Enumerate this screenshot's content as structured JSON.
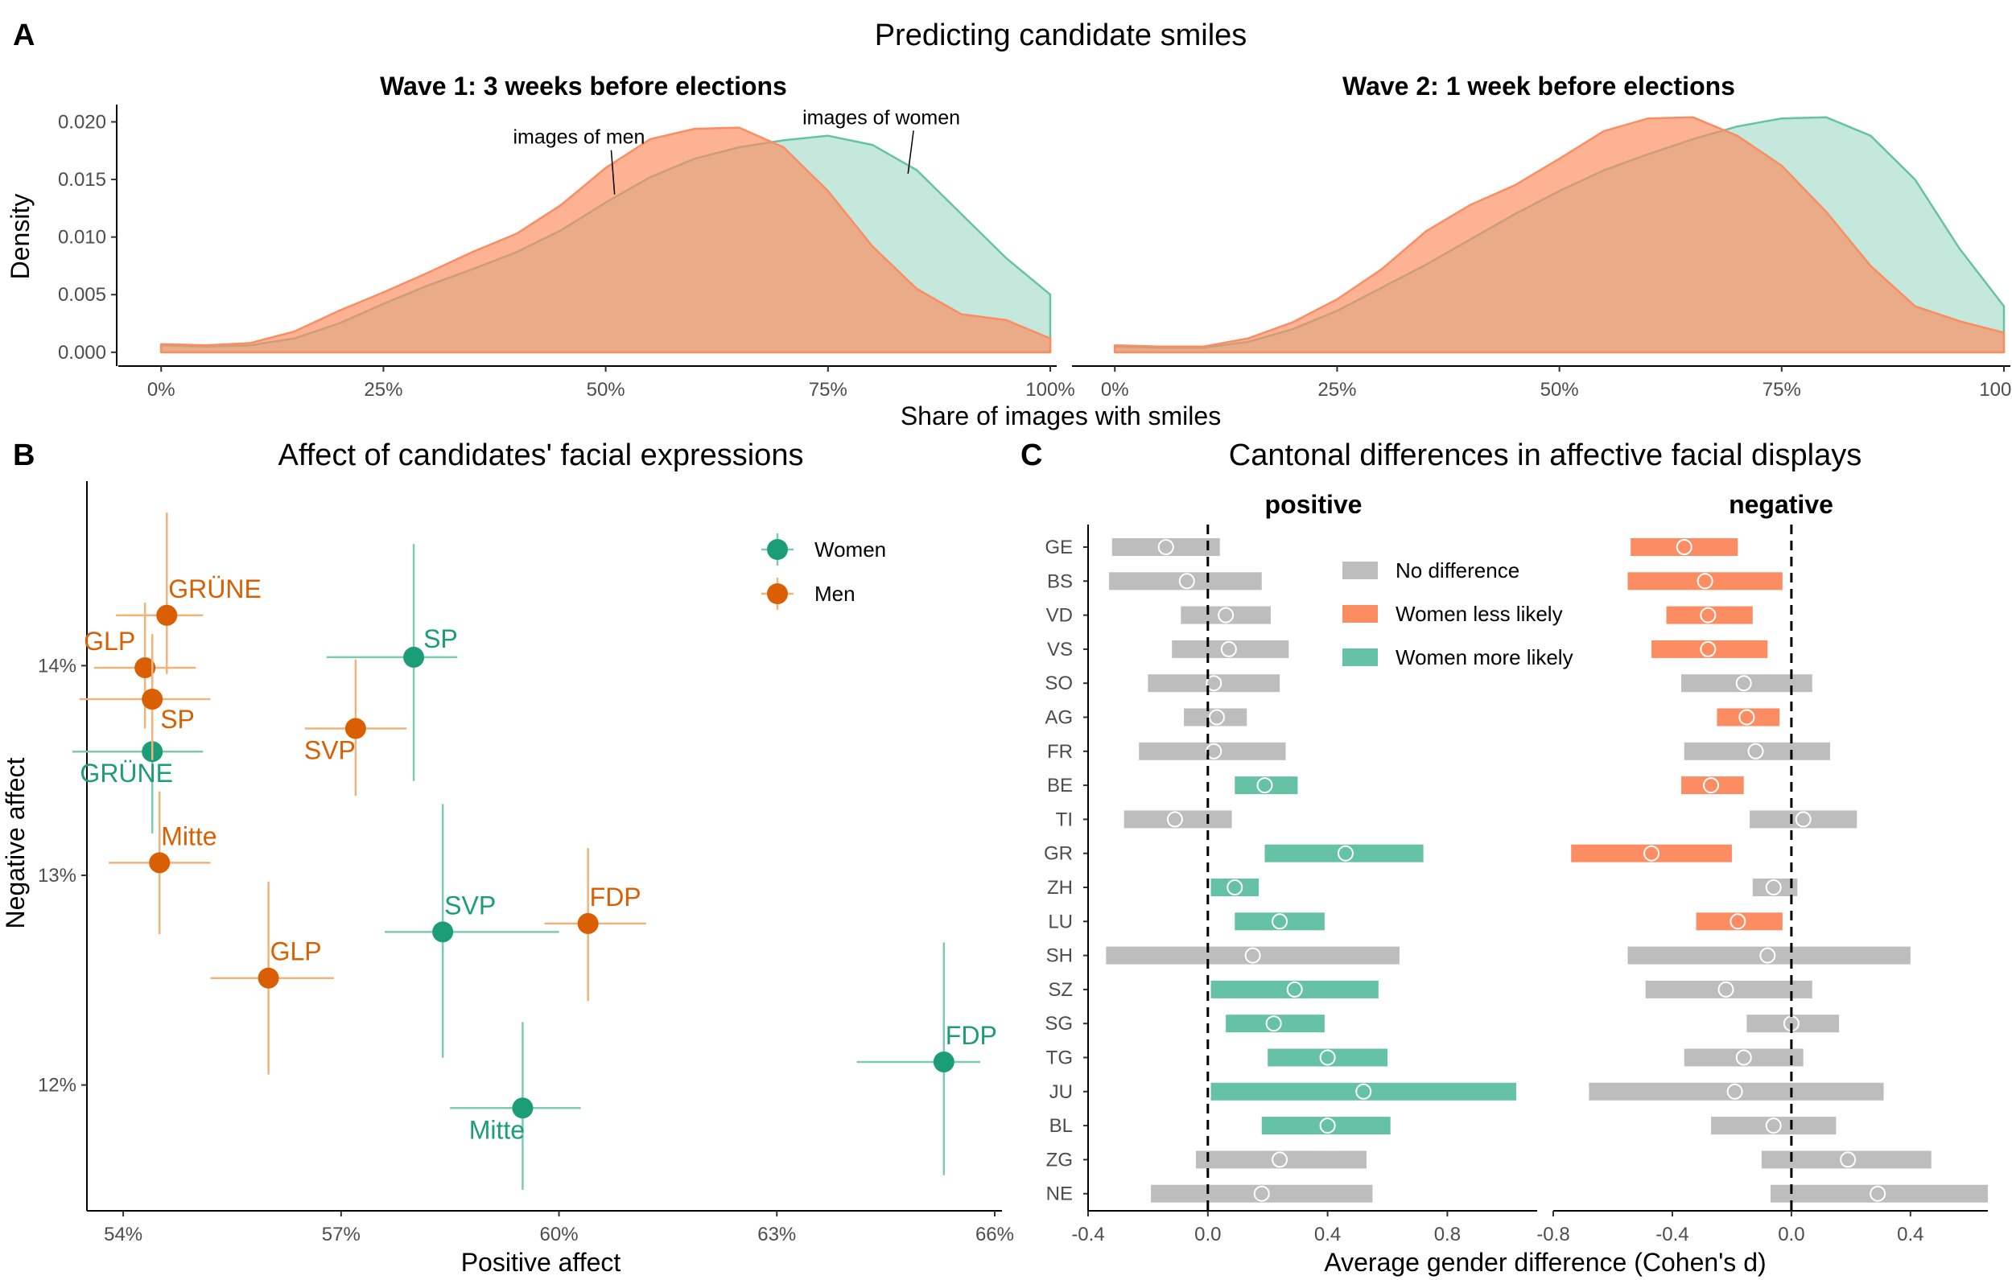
{
  "figure": {
    "panel_a": {
      "letter": "A",
      "title": "Predicting candidate smiles",
      "xlabel": "Share of images with smiles",
      "ylabel": "Density"
    },
    "panel_b": {
      "letter": "B",
      "title": "Affect of candidates' facial expressions",
      "xlabel": "Positive affect",
      "ylabel": "Negative affect"
    },
    "panel_c": {
      "letter": "C",
      "title": "Cantonal differences in affective facial displays",
      "xlabel": "Average gender difference (Cohen's d)"
    }
  },
  "colors": {
    "women": "#1b9e77",
    "men": "#d95f02",
    "women_density": "#66c2a5",
    "men_density": "#fc8d62",
    "no_difference": "#bdbdbd",
    "women_less": "#fc8d62",
    "women_more": "#66c2a5"
  },
  "chart_data": [
    {
      "id": "density",
      "type": "area",
      "x_ticks": [
        0,
        25,
        50,
        75,
        100
      ],
      "x_tick_labels": [
        "0%",
        "25%",
        "50%",
        "75%",
        "100%"
      ],
      "y_ticks": [
        0,
        0.005,
        0.01,
        0.015,
        0.02
      ],
      "y_tick_labels": [
        "0.000",
        "0.005",
        "0.010",
        "0.015",
        "0.020"
      ],
      "xlim": [
        -5,
        100
      ],
      "ylim": [
        -0.0012,
        0.0215
      ],
      "x": [
        0,
        5,
        10,
        15,
        20,
        25,
        30,
        35,
        40,
        45,
        50,
        55,
        60,
        65,
        70,
        75,
        80,
        85,
        90,
        95,
        100
      ],
      "facets": [
        {
          "title": "Wave 1: 3 weeks before elections",
          "annotations": [
            {
              "text": "images of men",
              "x": 47,
              "y": 0.0181,
              "to_x": 51,
              "to_y": 0.0137
            },
            {
              "text": "images of women",
              "x": 81,
              "y": 0.0198,
              "to_x": 84,
              "to_y": 0.0155
            }
          ],
          "series": [
            {
              "name": "images of women",
              "values": [
                0.0006,
                0.0005,
                0.0006,
                0.0012,
                0.0025,
                0.0042,
                0.0058,
                0.0072,
                0.0087,
                0.0106,
                0.013,
                0.0152,
                0.0168,
                0.0178,
                0.0184,
                0.0188,
                0.018,
                0.0158,
                0.012,
                0.0082,
                0.005
              ]
            },
            {
              "name": "images of men",
              "values": [
                0.0007,
                0.0006,
                0.0008,
                0.0018,
                0.0036,
                0.0052,
                0.0069,
                0.0087,
                0.0103,
                0.0128,
                0.016,
                0.0185,
                0.0194,
                0.0195,
                0.0178,
                0.014,
                0.0092,
                0.0055,
                0.0033,
                0.0028,
                0.0012
              ]
            }
          ]
        },
        {
          "title": "Wave 2: 1 week before elections",
          "annotations": [],
          "series": [
            {
              "name": "images of women",
              "values": [
                0.0005,
                0.0004,
                0.0004,
                0.0009,
                0.002,
                0.0036,
                0.0056,
                0.0076,
                0.0098,
                0.012,
                0.014,
                0.0158,
                0.0172,
                0.0185,
                0.0196,
                0.0203,
                0.0204,
                0.0188,
                0.015,
                0.009,
                0.004
              ]
            },
            {
              "name": "images of men",
              "values": [
                0.0006,
                0.0005,
                0.0005,
                0.0012,
                0.0026,
                0.0046,
                0.0072,
                0.0105,
                0.0128,
                0.0145,
                0.0168,
                0.0192,
                0.0203,
                0.0204,
                0.0188,
                0.0162,
                0.0122,
                0.0075,
                0.004,
                0.0027,
                0.0017
              ]
            }
          ]
        }
      ]
    },
    {
      "id": "affect",
      "type": "scatter",
      "x_ticks": [
        54,
        57,
        60,
        63,
        66
      ],
      "x_tick_labels": [
        "54%",
        "57%",
        "60%",
        "63%",
        "66%"
      ],
      "y_ticks": [
        12,
        13,
        14
      ],
      "y_tick_labels": [
        "12%",
        "13%",
        "14%"
      ],
      "xlim": [
        53.5,
        66.1
      ],
      "ylim": [
        11.4,
        14.88
      ],
      "legend": [
        {
          "name": "Women",
          "color": "#1b9e77"
        },
        {
          "name": "Men",
          "color": "#d95f02"
        }
      ],
      "series": [
        {
          "name": "Women",
          "points": [
            {
              "label": "SP",
              "x": 58.0,
              "y": 14.04,
              "x_lo": 56.8,
              "x_hi": 58.6,
              "y_lo": 13.45,
              "y_hi": 14.58,
              "label_pos": "right"
            },
            {
              "label": "GRÜNE",
              "x": 54.4,
              "y": 13.59,
              "x_lo": 53.3,
              "x_hi": 55.1,
              "y_lo": 13.2,
              "y_hi": 14.0,
              "label_pos": "below"
            },
            {
              "label": "SVP",
              "x": 58.4,
              "y": 12.73,
              "x_lo": 57.6,
              "x_hi": 60.0,
              "y_lo": 12.13,
              "y_hi": 13.34,
              "label_pos": "upright"
            },
            {
              "label": "FDP",
              "x": 65.3,
              "y": 12.11,
              "x_lo": 64.1,
              "x_hi": 65.8,
              "y_lo": 11.57,
              "y_hi": 12.68,
              "label_pos": "upright"
            },
            {
              "label": "Mitte",
              "x": 59.5,
              "y": 11.89,
              "x_lo": 58.5,
              "x_hi": 60.3,
              "y_lo": 11.5,
              "y_hi": 12.3,
              "label_pos": "belowleft"
            }
          ]
        },
        {
          "name": "Men",
          "points": [
            {
              "label": "GRÜNE",
              "x": 54.6,
              "y": 14.24,
              "x_lo": 53.9,
              "x_hi": 55.1,
              "y_lo": 13.96,
              "y_hi": 14.73,
              "label_pos": "upright"
            },
            {
              "label": "GLP",
              "x": 54.3,
              "y": 13.99,
              "x_lo": 53.6,
              "x_hi": 55.0,
              "y_lo": 13.7,
              "y_hi": 14.3,
              "label_pos": "upleft"
            },
            {
              "label": "SP",
              "x": 54.4,
              "y": 13.84,
              "x_lo": 53.4,
              "x_hi": 55.2,
              "y_lo": 13.55,
              "y_hi": 14.15,
              "label_pos": "belowright"
            },
            {
              "label": "SVP",
              "x": 57.2,
              "y": 13.7,
              "x_lo": 56.5,
              "x_hi": 57.9,
              "y_lo": 13.38,
              "y_hi": 14.03,
              "label_pos": "belowleft"
            },
            {
              "label": "Mitte",
              "x": 54.5,
              "y": 13.06,
              "x_lo": 53.8,
              "x_hi": 55.2,
              "y_lo": 12.72,
              "y_hi": 13.4,
              "label_pos": "upright"
            },
            {
              "label": "GLP",
              "x": 56.0,
              "y": 12.51,
              "x_lo": 55.2,
              "x_hi": 56.9,
              "y_lo": 12.05,
              "y_hi": 12.97,
              "label_pos": "upright"
            },
            {
              "label": "FDP",
              "x": 60.4,
              "y": 12.77,
              "x_lo": 59.8,
              "x_hi": 61.2,
              "y_lo": 12.4,
              "y_hi": 13.13,
              "label_pos": "upright"
            }
          ]
        }
      ]
    },
    {
      "id": "cantonal",
      "type": "bar",
      "categories": [
        "GE",
        "BS",
        "VD",
        "VS",
        "SO",
        "AG",
        "FR",
        "BE",
        "TI",
        "GR",
        "ZH",
        "LU",
        "SH",
        "SZ",
        "SG",
        "TG",
        "JU",
        "BL",
        "ZG",
        "NE"
      ],
      "legend": [
        {
          "key": "none",
          "label": "No difference"
        },
        {
          "key": "less",
          "label": "Women less likely"
        },
        {
          "key": "more",
          "label": "Women more likely"
        }
      ],
      "facets": [
        {
          "title": "positive",
          "xlim": [
            -0.4,
            1.1
          ],
          "x_ticks": [
            -0.4,
            0.0,
            0.4,
            0.8
          ],
          "x_tick_labels": [
            "-0.4",
            "0.0",
            "0.4",
            "0.8"
          ],
          "estimates": [
            -0.14,
            -0.07,
            0.06,
            0.07,
            0.02,
            0.03,
            0.02,
            0.19,
            -0.11,
            0.46,
            0.09,
            0.24,
            0.15,
            0.29,
            0.22,
            0.4,
            0.52,
            0.4,
            0.24,
            0.18
          ],
          "lower": [
            -0.32,
            -0.33,
            -0.09,
            -0.12,
            -0.2,
            -0.08,
            -0.23,
            0.09,
            -0.28,
            0.19,
            0.01,
            0.09,
            -0.34,
            0.01,
            0.06,
            0.2,
            0.01,
            0.18,
            -0.04,
            -0.19
          ],
          "upper": [
            0.04,
            0.18,
            0.21,
            0.27,
            0.24,
            0.13,
            0.26,
            0.3,
            0.08,
            0.72,
            0.17,
            0.39,
            0.64,
            0.57,
            0.39,
            0.6,
            1.03,
            0.61,
            0.53,
            0.55
          ],
          "category": [
            "none",
            "none",
            "none",
            "none",
            "none",
            "none",
            "none",
            "more",
            "none",
            "more",
            "more",
            "more",
            "none",
            "more",
            "more",
            "more",
            "more",
            "more",
            "none",
            "none"
          ]
        },
        {
          "title": "negative",
          "xlim": [
            -0.8,
            0.66
          ],
          "x_ticks": [
            -0.8,
            -0.4,
            0.0,
            0.4
          ],
          "x_tick_labels": [
            "-0.8",
            "-0.4",
            "0.0",
            "0.4"
          ],
          "estimates": [
            -0.36,
            -0.29,
            -0.28,
            -0.28,
            -0.16,
            -0.15,
            -0.12,
            -0.27,
            0.04,
            -0.47,
            -0.06,
            -0.18,
            -0.08,
            -0.22,
            0.0,
            -0.16,
            -0.19,
            -0.06,
            0.19,
            0.29
          ],
          "lower": [
            -0.54,
            -0.55,
            -0.42,
            -0.47,
            -0.37,
            -0.25,
            -0.36,
            -0.37,
            -0.14,
            -0.74,
            -0.13,
            -0.32,
            -0.55,
            -0.49,
            -0.15,
            -0.36,
            -0.68,
            -0.27,
            -0.1,
            -0.07
          ],
          "upper": [
            -0.18,
            -0.03,
            -0.13,
            -0.08,
            0.07,
            -0.04,
            0.13,
            -0.16,
            0.22,
            -0.2,
            0.02,
            -0.03,
            0.4,
            0.07,
            0.16,
            0.04,
            0.31,
            0.15,
            0.47,
            0.66
          ],
          "category": [
            "less",
            "less",
            "less",
            "less",
            "none",
            "less",
            "none",
            "less",
            "none",
            "less",
            "none",
            "less",
            "none",
            "none",
            "none",
            "none",
            "none",
            "none",
            "none",
            "none"
          ]
        }
      ]
    }
  ]
}
